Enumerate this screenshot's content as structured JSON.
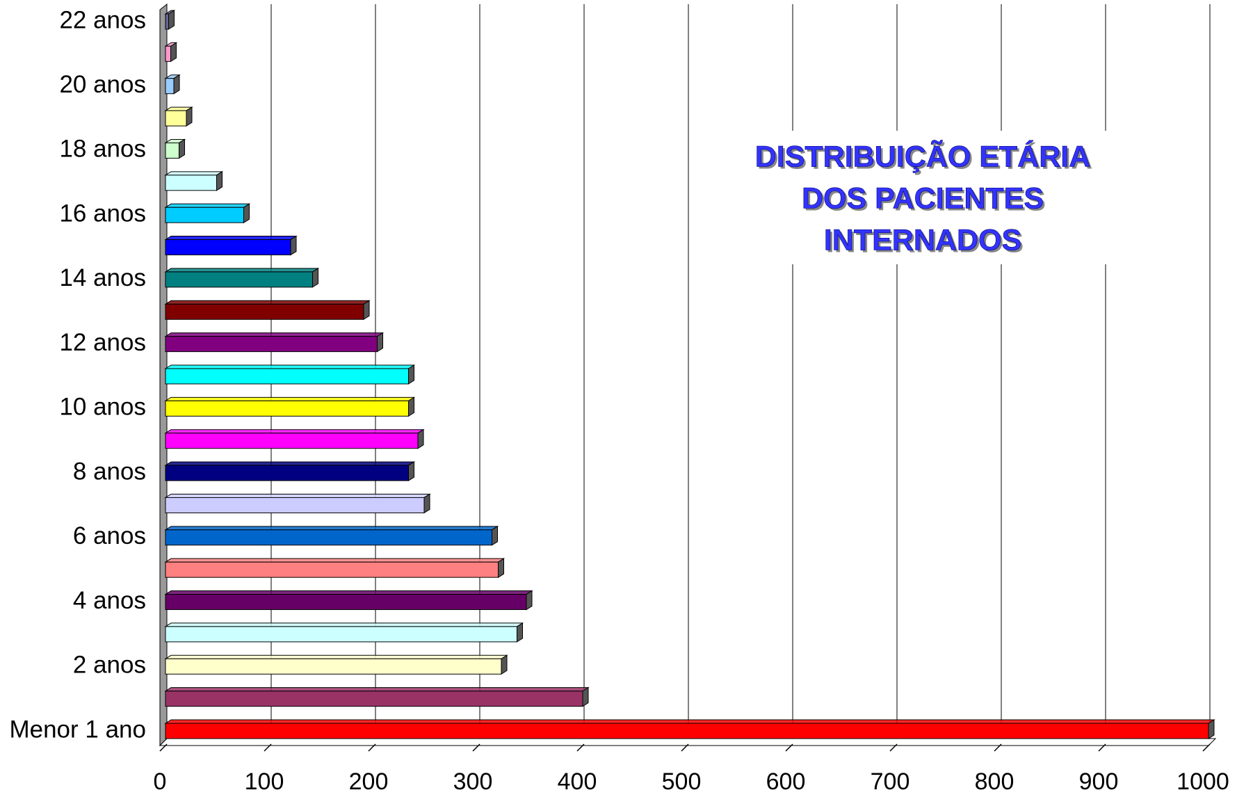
{
  "chart_data": {
    "type": "bar",
    "orientation": "horizontal",
    "title": [
      "DISTRIBUIÇÃO ETÁRIA",
      "DOS PACIENTES",
      "INTERNADOS"
    ],
    "categories": [
      "Menor 1 ano",
      null,
      "2 anos",
      null,
      "4 anos",
      null,
      "6 anos",
      null,
      "8 anos",
      null,
      "10 anos",
      null,
      "12 anos",
      null,
      "14 anos",
      null,
      "16 anos",
      null,
      "18 anos",
      null,
      "20 anos",
      null,
      "22 anos"
    ],
    "values": [
      1000,
      400,
      322,
      337,
      346,
      319,
      313,
      248,
      233,
      242,
      233,
      233,
      203,
      190,
      141,
      120,
      75,
      49,
      13,
      20,
      8,
      5,
      3
    ],
    "colors": [
      "#ff0000",
      "#993366",
      "#ffffcc",
      "#ccffff",
      "#660066",
      "#ff8080",
      "#0066cc",
      "#ccccff",
      "#000080",
      "#ff00ff",
      "#ffff00",
      "#00ffff",
      "#800080",
      "#800000",
      "#008080",
      "#0000ff",
      "#00ccff",
      "#ccffff",
      "#ccffcc",
      "#ffff99",
      "#99ccff",
      "#ff99cc",
      "#666699"
    ],
    "xlim": [
      0,
      1000
    ],
    "xticks": [
      0,
      100,
      200,
      300,
      400,
      500,
      600,
      700,
      800,
      900,
      1000
    ],
    "grid": true
  }
}
